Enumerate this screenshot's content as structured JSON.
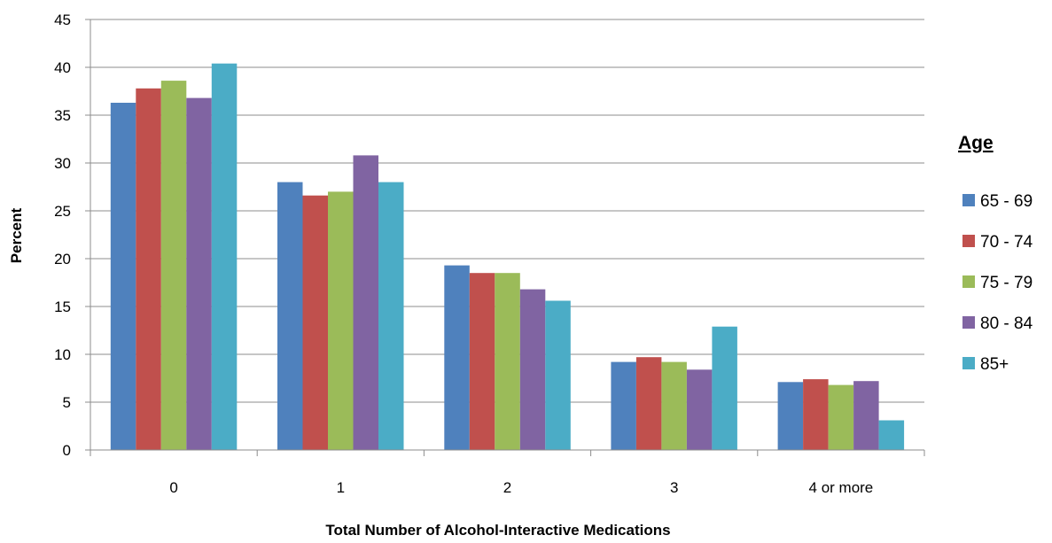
{
  "chart_data": {
    "type": "bar",
    "categories": [
      "0",
      "1",
      "2",
      "3",
      "4 or more"
    ],
    "series": [
      {
        "name": "65 - 69",
        "color": "#4F81BD",
        "values": [
          36.3,
          28.0,
          19.3,
          9.2,
          7.1
        ]
      },
      {
        "name": "70 - 74",
        "color": "#C0504D",
        "values": [
          37.8,
          26.6,
          18.5,
          9.7,
          7.4
        ]
      },
      {
        "name": "75 - 79",
        "color": "#9BBB59",
        "values": [
          38.6,
          27.0,
          18.5,
          9.2,
          6.8
        ]
      },
      {
        "name": "80 - 84",
        "color": "#8064A2",
        "values": [
          36.8,
          30.8,
          16.8,
          8.4,
          7.2
        ]
      },
      {
        "name": "85+",
        "color": "#4BACC6",
        "values": [
          40.4,
          28.0,
          15.6,
          12.9,
          3.1
        ]
      }
    ],
    "xlabel": "Total Number of Alcohol-Interactive Medications",
    "ylabel": "Percent",
    "ylim": [
      0,
      45
    ],
    "yticks": [
      "0",
      "5",
      "10",
      "15",
      "20",
      "25",
      "30",
      "35",
      "40",
      "45"
    ],
    "grid": true,
    "legend": {
      "title": "Age",
      "position": "right"
    }
  }
}
